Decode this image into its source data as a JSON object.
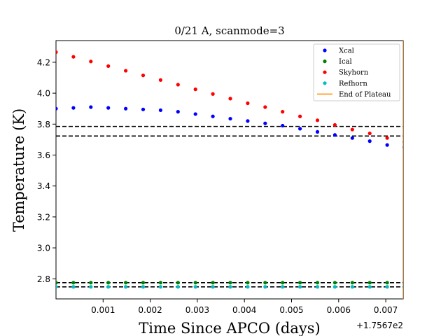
{
  "chart_data": {
    "type": "scatter",
    "title": "0/21 A, scanmode=3",
    "xlabel": "Time Since APCO (days)",
    "ylabel": "Temperature (K)",
    "x_offset_label": "+1.7567e2",
    "xlim": [
      0.0,
      0.00737
    ],
    "ylim": [
      2.67,
      4.34
    ],
    "x_ticks": [
      0.001,
      0.002,
      0.003,
      0.004,
      0.005,
      0.006,
      0.007
    ],
    "x_tick_labels": [
      "0.001",
      "0.002",
      "0.003",
      "0.004",
      "0.005",
      "0.006",
      "0.007"
    ],
    "y_ticks": [
      2.8,
      3.0,
      3.2,
      3.4,
      3.6,
      3.8,
      4.0,
      4.2
    ],
    "y_tick_labels": [
      "2.8",
      "3.0",
      "3.2",
      "3.4",
      "3.6",
      "3.8",
      "4.0",
      "4.2"
    ],
    "grid": false,
    "legend_position": "top-right",
    "x": [
      0.0,
      0.00037,
      0.00074,
      0.00111,
      0.00148,
      0.00185,
      0.00222,
      0.00259,
      0.00296,
      0.00333,
      0.0037,
      0.00407,
      0.00444,
      0.00481,
      0.00518,
      0.00555,
      0.00592,
      0.00629,
      0.00666,
      0.00703,
      0.0074
    ],
    "series": [
      {
        "name": "Xcal",
        "color": "#0000ff",
        "values": [
          3.9,
          3.905,
          3.91,
          3.905,
          3.9,
          3.895,
          3.89,
          3.88,
          3.865,
          3.85,
          3.835,
          3.82,
          3.805,
          3.79,
          3.77,
          3.75,
          3.73,
          3.71,
          3.69,
          3.665,
          3.65
        ]
      },
      {
        "name": "Ical",
        "color": "#008000",
        "values": [
          2.775,
          2.775,
          2.775,
          2.775,
          2.775,
          2.775,
          2.775,
          2.775,
          2.775,
          2.775,
          2.775,
          2.775,
          2.775,
          2.775,
          2.775,
          2.775,
          2.775,
          2.775,
          2.775,
          2.775,
          2.775
        ]
      },
      {
        "name": "Skyhorn",
        "color": "#ff0000",
        "values": [
          4.265,
          4.235,
          4.205,
          4.175,
          4.145,
          4.115,
          4.085,
          4.055,
          4.025,
          3.995,
          3.965,
          3.935,
          3.91,
          3.88,
          3.85,
          3.825,
          3.795,
          3.765,
          3.74,
          3.71,
          3.685
        ]
      },
      {
        "name": "Refhorn",
        "color": "#00bfbf",
        "values": [
          2.748,
          2.748,
          2.748,
          2.748,
          2.748,
          2.748,
          2.748,
          2.748,
          2.748,
          2.748,
          2.748,
          2.748,
          2.748,
          2.748,
          2.748,
          2.748,
          2.748,
          2.748,
          2.748,
          2.748,
          2.748
        ]
      }
    ],
    "vertical_lines": [
      {
        "name": "End of Plateau",
        "color": "#ff8c00",
        "x": 0.00737
      }
    ],
    "horizontal_dashed_lines": [
      3.785,
      3.723,
      2.775,
      2.748
    ]
  }
}
